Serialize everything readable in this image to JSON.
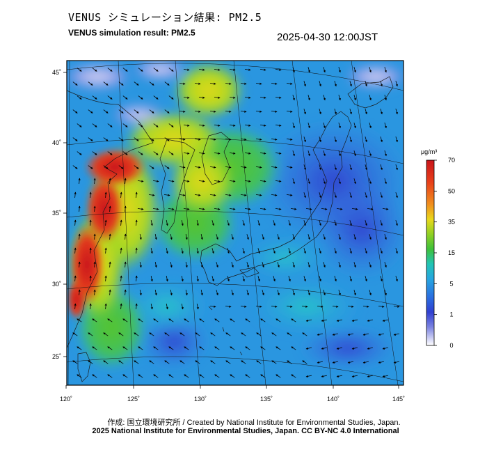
{
  "title": {
    "ja": "VENUS シミュレーション結果: PM2.5",
    "en": "VENUS simulation result: PM2.5"
  },
  "timestamp": "2025-04-30 12:00JST",
  "map": {
    "lon_labels": [
      "120˚",
      "125˚",
      "130˚",
      "135˚",
      "140˚",
      "145˚"
    ],
    "lat_labels": [
      "45˚",
      "40˚",
      "35˚",
      "30˚",
      "25˚"
    ],
    "lon_values": [
      120,
      125,
      130,
      135,
      140,
      145
    ],
    "lat_values": [
      45,
      40,
      35,
      30,
      25
    ]
  },
  "colorbar": {
    "unit": "μg/m³",
    "tick_labels": [
      "70",
      "50",
      "35",
      "15",
      "5",
      "1",
      "0"
    ],
    "colors": [
      "#cc1a1a",
      "#ef4a1a",
      "#f4a020",
      "#e8e61c",
      "#4ec32a",
      "#22c8c8",
      "#2a9ae0",
      "#2650d8",
      "#5c5cd8",
      "#ffffff"
    ]
  },
  "credits": {
    "line1": "作成: 国立環境研究所 / Created by National Institute for Environmental Studies, Japan.",
    "line2": "2025 National Institute for Environmental Studies, Japan. CC BY-NC 4.0 International"
  }
}
